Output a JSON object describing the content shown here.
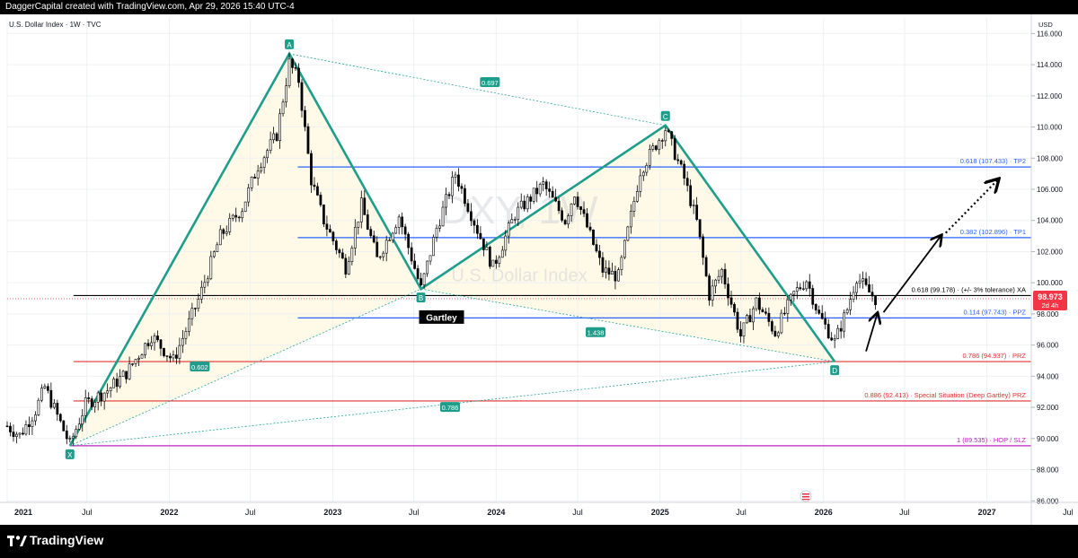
{
  "header": {
    "caption": "DaggerCapital created with TradingView.com, Apr 29, 2026 15:40 UTC-4"
  },
  "footer": {
    "brand": "TradingView"
  },
  "chart_data": {
    "type": "candlestick",
    "symbol_line": "U.S. Dollar Index · 1W · TVC",
    "watermark_ticker": "DXY, 1W",
    "watermark_name": "U.S. Dollar Index",
    "currency": "USD",
    "y_ticks": [
      86,
      88,
      90,
      92,
      94,
      96,
      98,
      100,
      102,
      104,
      106,
      108,
      110,
      112,
      114,
      116
    ],
    "y_tick_labels": [
      "86.000",
      "88.000",
      "90.000",
      "92.000",
      "94.000",
      "96.000",
      "98.000",
      "100.000",
      "102.000",
      "104.000",
      "106.000",
      "108.000",
      "110.000",
      "112.000",
      "114.000",
      "116.000"
    ],
    "ylim": [
      85.9,
      117.0
    ],
    "x_range": [
      "2021-01-04",
      "2027-04-10"
    ],
    "x_ticks": [
      {
        "label": "2021",
        "date": "2021-01-04",
        "bold": true
      },
      {
        "label": "Jul",
        "date": "2021-07-01",
        "bold": false
      },
      {
        "label": "2022",
        "date": "2022-01-01",
        "bold": true
      },
      {
        "label": "Jul",
        "date": "2022-07-01",
        "bold": false
      },
      {
        "label": "2023",
        "date": "2023-01-01",
        "bold": true
      },
      {
        "label": "Jul",
        "date": "2023-07-01",
        "bold": false
      },
      {
        "label": "2024",
        "date": "2024-01-01",
        "bold": true
      },
      {
        "label": "Jul",
        "date": "2024-07-01",
        "bold": false
      },
      {
        "label": "2025",
        "date": "2025-01-01",
        "bold": true
      },
      {
        "label": "Jul",
        "date": "2025-07-01",
        "bold": false
      },
      {
        "label": "2026",
        "date": "2026-01-01",
        "bold": true
      },
      {
        "label": "Jul",
        "date": "2026-07-01",
        "bold": false
      },
      {
        "label": "2027",
        "date": "2027-01-01",
        "bold": true
      },
      {
        "label": "Jul",
        "date": "2027-07-01",
        "bold": false
      }
    ],
    "price_path": [
      [
        "2021-01-04",
        90.8
      ],
      [
        "2021-02-01",
        90.2
      ],
      [
        "2021-03-08",
        91.8
      ],
      [
        "2021-03-29",
        93.3
      ],
      [
        "2021-05-03",
        91.0
      ],
      [
        "2021-05-24",
        89.6
      ],
      [
        "2021-06-28",
        92.2
      ],
      [
        "2021-08-16",
        93.1
      ],
      [
        "2021-09-27",
        94.2
      ],
      [
        "2021-11-22",
        96.6
      ],
      [
        "2022-01-10",
        95.0
      ],
      [
        "2022-03-07",
        98.9
      ],
      [
        "2022-04-25",
        103.0
      ],
      [
        "2022-06-13",
        104.8
      ],
      [
        "2022-07-18",
        107.5
      ],
      [
        "2022-08-29",
        109.5
      ],
      [
        "2022-09-26",
        114.1
      ],
      [
        "2022-10-17",
        113.0
      ],
      [
        "2022-11-14",
        106.6
      ],
      [
        "2022-12-12",
        104.0
      ],
      [
        "2023-01-30",
        101.0
      ],
      [
        "2023-03-06",
        105.0
      ],
      [
        "2023-04-10",
        101.5
      ],
      [
        "2023-05-29",
        104.3
      ],
      [
        "2023-07-17",
        99.6
      ],
      [
        "2023-08-21",
        103.5
      ],
      [
        "2023-10-02",
        107.0
      ],
      [
        "2023-11-20",
        103.4
      ],
      [
        "2023-12-25",
        101.0
      ],
      [
        "2024-02-12",
        104.4
      ],
      [
        "2024-04-15",
        106.3
      ],
      [
        "2024-06-03",
        104.0
      ],
      [
        "2024-06-24",
        105.8
      ],
      [
        "2024-08-26",
        100.8
      ],
      [
        "2024-09-30",
        100.4
      ],
      [
        "2024-11-18",
        107.2
      ],
      [
        "2025-01-13",
        109.9
      ],
      [
        "2025-02-24",
        106.7
      ],
      [
        "2025-03-24",
        103.9
      ],
      [
        "2025-04-21",
        99.2
      ],
      [
        "2025-05-19",
        100.8
      ],
      [
        "2025-06-30",
        96.6
      ],
      [
        "2025-08-04",
        98.8
      ],
      [
        "2025-09-15",
        96.8
      ],
      [
        "2025-10-27",
        99.3
      ],
      [
        "2025-11-24",
        100.2
      ],
      [
        "2025-12-22",
        97.9
      ],
      [
        "2026-01-26",
        96.2
      ],
      [
        "2026-02-23",
        98.3
      ],
      [
        "2026-03-16",
        100.4
      ],
      [
        "2026-04-06",
        99.6
      ],
      [
        "2026-04-27",
        98.97
      ]
    ],
    "last_price": {
      "value": 98.973,
      "label": "98.973",
      "countdown": "2d 4h"
    },
    "harmonic": {
      "name": "Gartley",
      "points": [
        {
          "label": "X",
          "date": "2021-05-24",
          "price": 89.535
        },
        {
          "label": "A",
          "date": "2022-09-26",
          "price": 114.7
        },
        {
          "label": "B",
          "date": "2023-07-17",
          "price": 99.6
        },
        {
          "label": "C",
          "date": "2025-01-13",
          "price": 110.1
        },
        {
          "label": "D",
          "date": "2026-01-26",
          "price": 94.937
        }
      ],
      "ratios": [
        {
          "text": "0.697",
          "date": "2023-12-18",
          "price": 112.85
        },
        {
          "text": "0.602",
          "date": "2022-03-10",
          "price": 94.6
        },
        {
          "text": "1.438",
          "date": "2024-08-10",
          "price": 96.8
        },
        {
          "text": "0.786",
          "date": "2023-09-20",
          "price": 92.0
        }
      ]
    },
    "levels": [
      {
        "value": 107.433,
        "label": "0.618 (107.433) · TP2",
        "color": "#2962ff",
        "start": "2022-10-15"
      },
      {
        "value": 102.896,
        "label": "0.382 (102.896) · TP1",
        "color": "#2962ff",
        "start": "2022-10-15"
      },
      {
        "value": 99.178,
        "label": "0.618 (99.178) · (+/- 3% tolerance) XA",
        "color": "#000000",
        "start": "2021-06-01"
      },
      {
        "value": 97.743,
        "label": "0.114 (97.743) · PPZ",
        "color": "#2962ff",
        "start": "2022-10-15"
      },
      {
        "value": 94.937,
        "label": "0.786 (94.937) · PRZ",
        "color": "#e03030",
        "start": "2021-06-01"
      },
      {
        "value": 92.413,
        "label": "0.886 (92.413) · Special Situation (Deep Gartley) PRZ",
        "color": "#e03030",
        "start": "2021-06-01"
      },
      {
        "value": 89.535,
        "label": "1 (89.535) · HOP / SLZ",
        "color": "#c020c0",
        "start": "2021-05-24"
      }
    ],
    "projection_arrows": [
      {
        "style": "solid",
        "from": [
          "2026-04-06",
          95.6
        ],
        "to": [
          "2026-05-01",
          98.0
        ]
      },
      {
        "style": "solid",
        "from": [
          "2026-05-15",
          98.1
        ],
        "to": [
          "2026-09-20",
          103.0
        ]
      },
      {
        "style": "dotted",
        "from": [
          "2026-10-01",
          103.2
        ],
        "to": [
          "2027-01-25",
          106.6
        ]
      }
    ]
  }
}
